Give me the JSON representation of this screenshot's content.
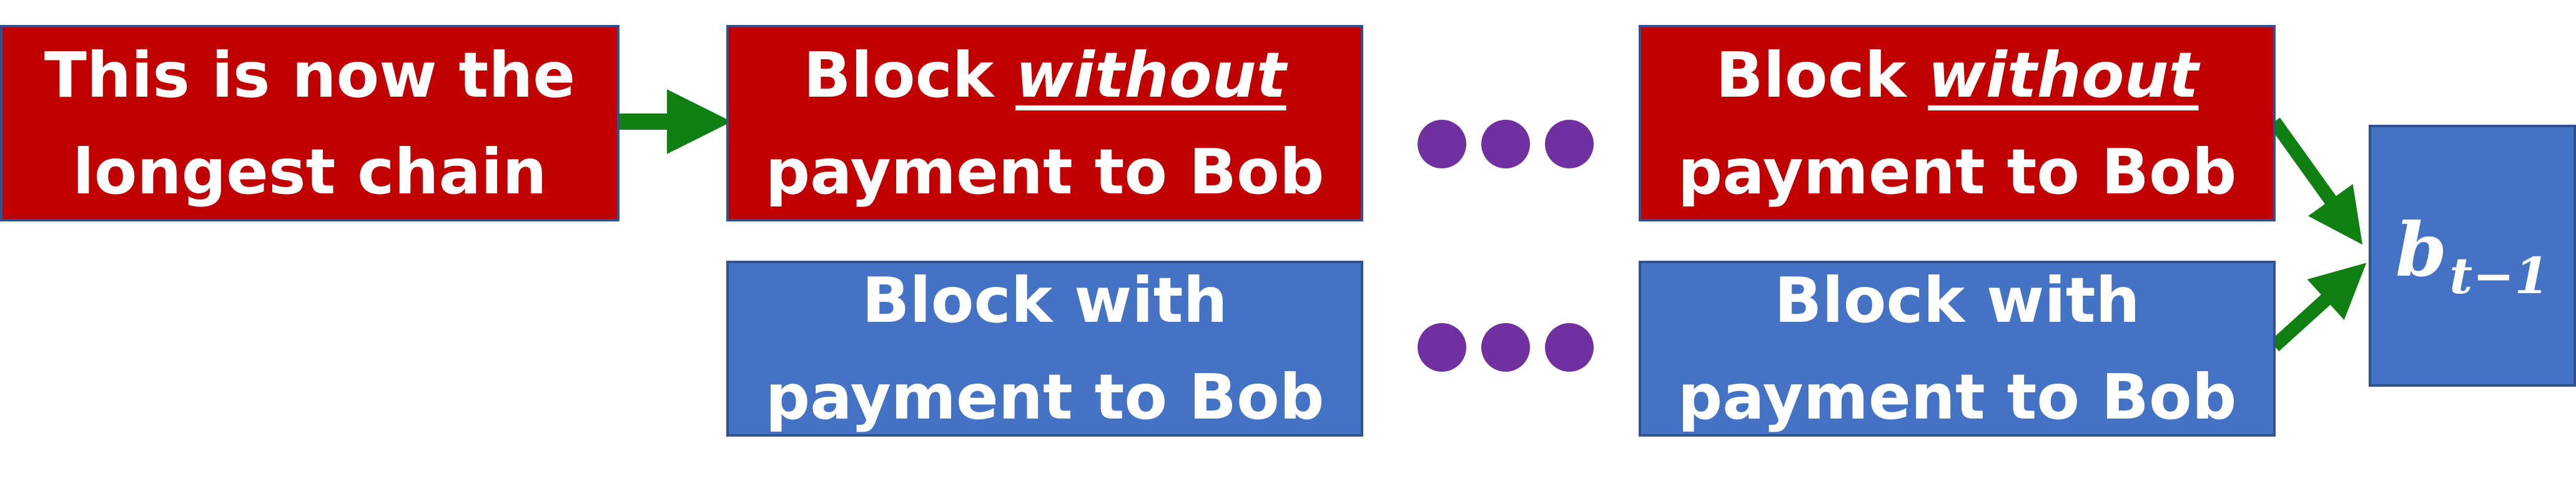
{
  "diagram": {
    "longest_chain_block": {
      "line1": "This is now the",
      "line2": "longest chain"
    },
    "top_blocks": [
      {
        "line1_prefix": "Block ",
        "line1_emph": "without",
        "line2": "payment to Bob"
      },
      {
        "line1_prefix": "Block ",
        "line1_emph": "without",
        "line2": "payment to Bob"
      }
    ],
    "bottom_blocks": [
      {
        "line1": "Block with",
        "line2": "payment to Bob"
      },
      {
        "line1": "Block with",
        "line2": "payment to Bob"
      }
    ],
    "target_block": {
      "base": "b",
      "subscript": "t−1"
    },
    "colors": {
      "red_block": "#c00000",
      "blue_block": "#4472c4",
      "border": "#2f528f",
      "arrow": "#0f7f12",
      "ellipsis_dots": "#7030a0"
    }
  }
}
